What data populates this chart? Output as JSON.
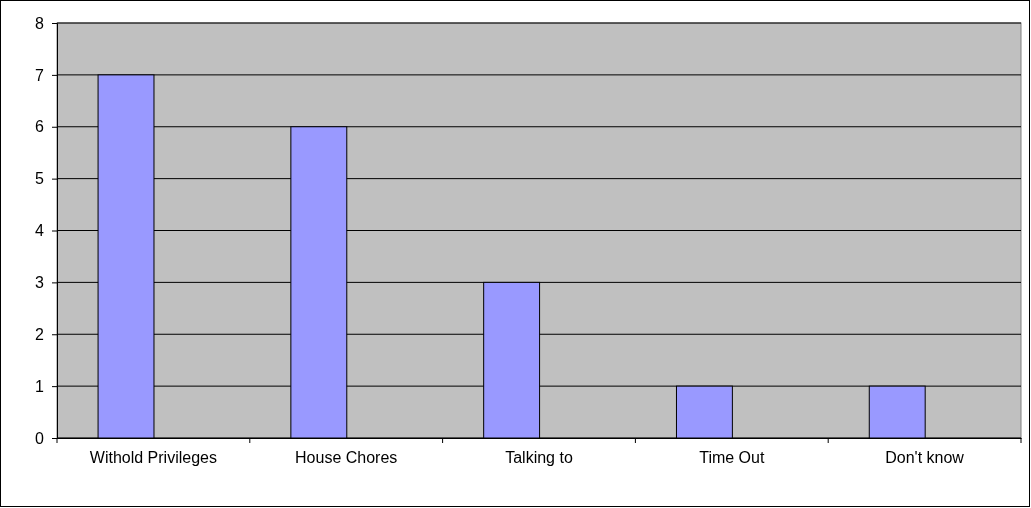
{
  "chart_data": {
    "type": "bar",
    "categories": [
      "Withold Privileges",
      "House Chores",
      "Talking to",
      "Time Out",
      "Don't know"
    ],
    "values": [
      7,
      6,
      3,
      1,
      1
    ],
    "color": "#9999ff",
    "ylim": [
      0,
      8
    ],
    "yticks": [
      0,
      1,
      2,
      3,
      4,
      5,
      6,
      7,
      8
    ],
    "grid": "y"
  }
}
